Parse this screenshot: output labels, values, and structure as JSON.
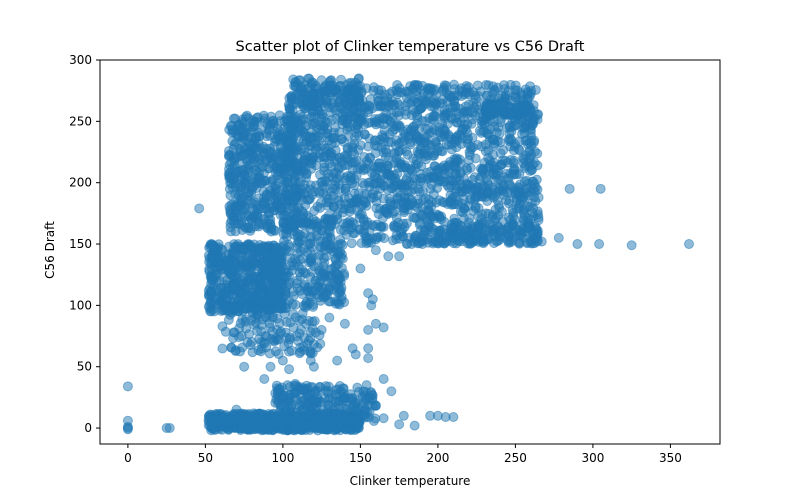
{
  "chart_data": {
    "type": "scatter",
    "title": "Scatter plot of Clinker temperature vs C56 Draft",
    "xlabel": "Clinker temperature",
    "ylabel": "C56 Draft",
    "xlim": [
      -18,
      382
    ],
    "ylim": [
      -13,
      300
    ],
    "xticks": [
      0,
      50,
      100,
      150,
      200,
      250,
      300,
      350
    ],
    "yticks": [
      0,
      50,
      100,
      150,
      200,
      250,
      300
    ],
    "grid": false,
    "marker_color": "#1f77b4",
    "marker_alpha": 0.5,
    "clusters": [
      {
        "x_range": [
          100,
          265
        ],
        "y_range": [
          150,
          280
        ],
        "count": 1800
      },
      {
        "x_range": [
          65,
          110
        ],
        "y_range": [
          160,
          255
        ],
        "count": 500
      },
      {
        "x_range": [
          52,
          100
        ],
        "y_range": [
          95,
          150
        ],
        "count": 500
      },
      {
        "x_range": [
          85,
          140
        ],
        "y_range": [
          100,
          150
        ],
        "count": 250
      },
      {
        "x_range": [
          60,
          125
        ],
        "y_range": [
          60,
          100
        ],
        "count": 150
      },
      {
        "x_range": [
          52,
          150
        ],
        "y_range": [
          -2,
          12
        ],
        "count": 700
      },
      {
        "x_range": [
          95,
          140
        ],
        "y_range": [
          10,
          35
        ],
        "count": 150
      },
      {
        "x_range": [
          140,
          160
        ],
        "y_range": [
          5,
          30
        ],
        "count": 60
      },
      {
        "x_range": [
          105,
          150
        ],
        "y_range": [
          265,
          285
        ],
        "count": 80
      },
      {
        "x_range": [
          230,
          260
        ],
        "y_range": [
          255,
          265
        ],
        "count": 60
      },
      {
        "x_range": [
          200,
          265
        ],
        "y_range": [
          150,
          165
        ],
        "count": 80
      }
    ],
    "points": [
      {
        "x": 0,
        "y": 0
      },
      {
        "x": 0,
        "y": 1
      },
      {
        "x": 0,
        "y": -1
      },
      {
        "x": 0,
        "y": 6
      },
      {
        "x": 0,
        "y": 34
      },
      {
        "x": 25,
        "y": 0
      },
      {
        "x": 27,
        "y": 0
      },
      {
        "x": 46,
        "y": 179
      },
      {
        "x": 278,
        "y": 155
      },
      {
        "x": 285,
        "y": 195
      },
      {
        "x": 290,
        "y": 150
      },
      {
        "x": 304,
        "y": 150
      },
      {
        "x": 305,
        "y": 195
      },
      {
        "x": 325,
        "y": 149
      },
      {
        "x": 362,
        "y": 150
      },
      {
        "x": 150,
        "y": 130
      },
      {
        "x": 155,
        "y": 110
      },
      {
        "x": 158,
        "y": 105
      },
      {
        "x": 157,
        "y": 100
      },
      {
        "x": 160,
        "y": 85
      },
      {
        "x": 155,
        "y": 80
      },
      {
        "x": 165,
        "y": 82
      },
      {
        "x": 140,
        "y": 85
      },
      {
        "x": 145,
        "y": 65
      },
      {
        "x": 147,
        "y": 60
      },
      {
        "x": 155,
        "y": 65
      },
      {
        "x": 155,
        "y": 57
      },
      {
        "x": 148,
        "y": 33
      },
      {
        "x": 154,
        "y": 35
      },
      {
        "x": 152,
        "y": 20
      },
      {
        "x": 160,
        "y": 18
      },
      {
        "x": 165,
        "y": 8
      },
      {
        "x": 175,
        "y": 3
      },
      {
        "x": 178,
        "y": 10
      },
      {
        "x": 185,
        "y": 2
      },
      {
        "x": 195,
        "y": 10
      },
      {
        "x": 200,
        "y": 10
      },
      {
        "x": 205,
        "y": 9
      },
      {
        "x": 210,
        "y": 9
      },
      {
        "x": 170,
        "y": 30
      },
      {
        "x": 165,
        "y": 40
      },
      {
        "x": 180,
        "y": 150
      },
      {
        "x": 183,
        "y": 150
      },
      {
        "x": 190,
        "y": 150
      },
      {
        "x": 175,
        "y": 140
      },
      {
        "x": 168,
        "y": 140
      },
      {
        "x": 160,
        "y": 145
      },
      {
        "x": 88,
        "y": 40
      },
      {
        "x": 75,
        "y": 50
      },
      {
        "x": 70,
        "y": 15
      },
      {
        "x": 125,
        "y": 80
      },
      {
        "x": 130,
        "y": 90
      },
      {
        "x": 135,
        "y": 55
      },
      {
        "x": 118,
        "y": 55
      },
      {
        "x": 120,
        "y": 50
      },
      {
        "x": 100,
        "y": 55
      },
      {
        "x": 104,
        "y": 48
      },
      {
        "x": 108,
        "y": 36
      },
      {
        "x": 92,
        "y": 50
      },
      {
        "x": 245,
        "y": 153
      },
      {
        "x": 255,
        "y": 155
      },
      {
        "x": 267,
        "y": 152
      },
      {
        "x": 265,
        "y": 188
      },
      {
        "x": 262,
        "y": 160
      },
      {
        "x": 230,
        "y": 152
      },
      {
        "x": 220,
        "y": 153
      },
      {
        "x": 210,
        "y": 155
      }
    ]
  }
}
